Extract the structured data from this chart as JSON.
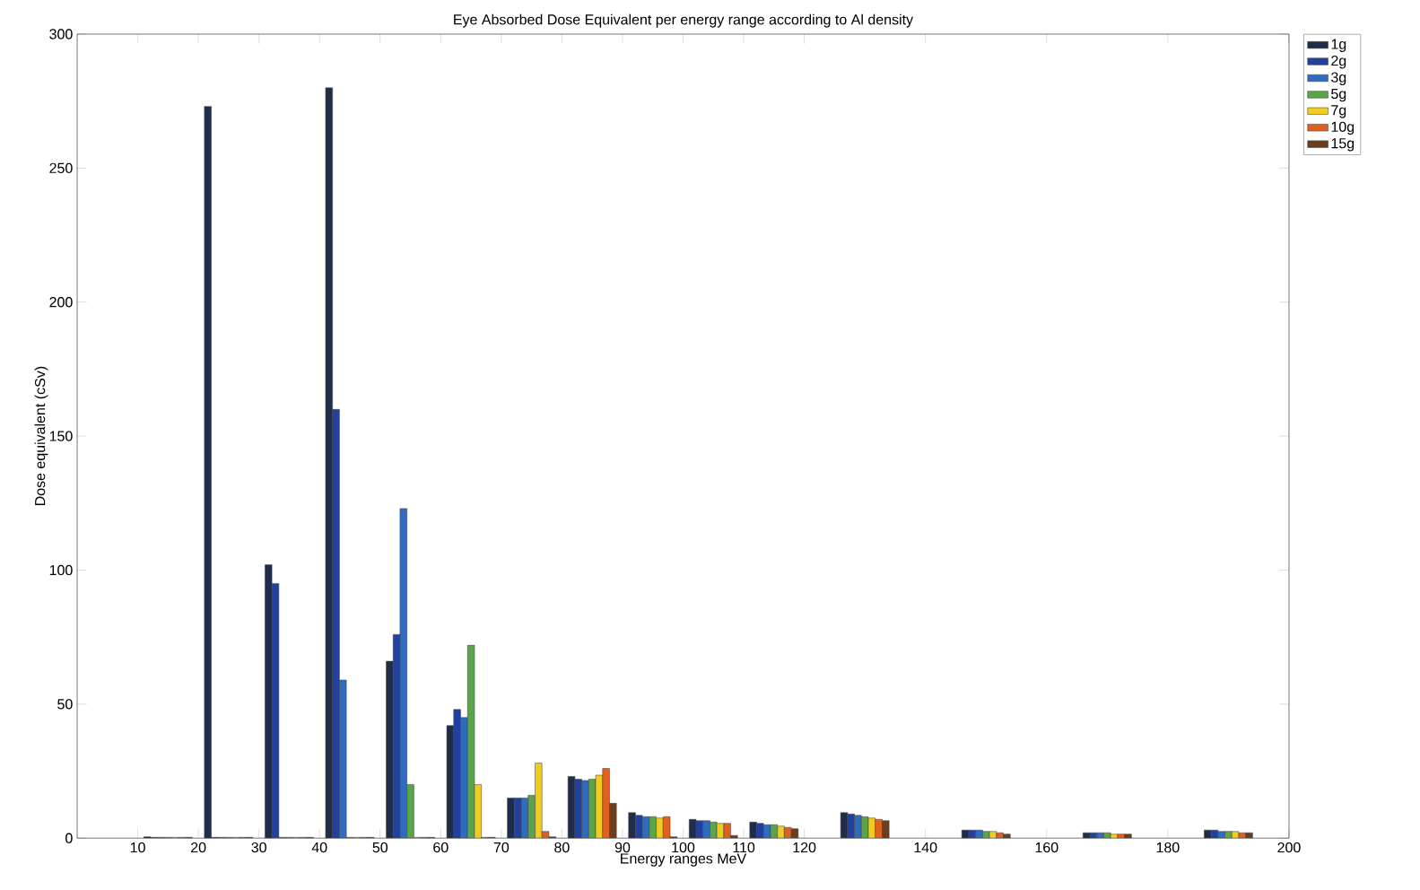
{
  "chart_data": {
    "type": "bar",
    "title": "Eye Absorbed Dose Equivalent per energy range according to Al density",
    "xlabel": "Energy ranges MeV",
    "ylabel": "Dose equivalent (cSv)",
    "x": [
      15,
      25,
      35,
      45,
      55,
      65,
      75,
      85,
      95,
      105,
      115,
      130,
      150,
      170,
      190
    ],
    "series": [
      {
        "name": "1g",
        "color": "#1f2d4a",
        "values": [
          0.5,
          273,
          102,
          280,
          66,
          42,
          15,
          23,
          9.5,
          7,
          6,
          9.5,
          3,
          2,
          3
        ]
      },
      {
        "name": "2g",
        "color": "#2240a0",
        "values": [
          0.3,
          0.3,
          95,
          160,
          76,
          48,
          15,
          22,
          8.5,
          6.5,
          5.5,
          9,
          3,
          2,
          3
        ]
      },
      {
        "name": "3g",
        "color": "#2f6cc0",
        "values": [
          0.3,
          0.3,
          0.3,
          59,
          123,
          45,
          15,
          21.5,
          8,
          6.5,
          5,
          8.5,
          3,
          2,
          2.5
        ]
      },
      {
        "name": "5g",
        "color": "#5aa54a",
        "values": [
          0.3,
          0.3,
          0.3,
          0.3,
          20,
          72,
          16,
          22,
          8,
          6,
          5,
          8,
          2.5,
          2,
          2.5
        ]
      },
      {
        "name": "7g",
        "color": "#f0cc20",
        "values": [
          0.3,
          0.3,
          0.3,
          0.3,
          0.3,
          20,
          28,
          23.5,
          7.5,
          5.5,
          4.5,
          7.5,
          2.5,
          1.5,
          2.5
        ]
      },
      {
        "name": "10g",
        "color": "#e06020",
        "values": [
          0.3,
          0.3,
          0.3,
          0.3,
          0.3,
          0.3,
          2.5,
          26,
          8,
          5.5,
          4,
          7,
          2,
          1.5,
          2
        ]
      },
      {
        "name": "15g",
        "color": "#6b3e1e",
        "values": [
          0.3,
          0.3,
          0.3,
          0.3,
          0.3,
          0.3,
          0.5,
          13,
          0.5,
          1,
          3.5,
          6.5,
          1.5,
          1.5,
          2
        ]
      }
    ],
    "xlim": [
      0,
      200
    ],
    "xticks": [
      10,
      20,
      30,
      40,
      50,
      60,
      70,
      80,
      90,
      100,
      110,
      120,
      140,
      160,
      180,
      200
    ],
    "ylim": [
      0,
      300
    ],
    "yticks": [
      0,
      50,
      100,
      150,
      200,
      250,
      300
    ],
    "grid": false,
    "legend": "top right"
  }
}
